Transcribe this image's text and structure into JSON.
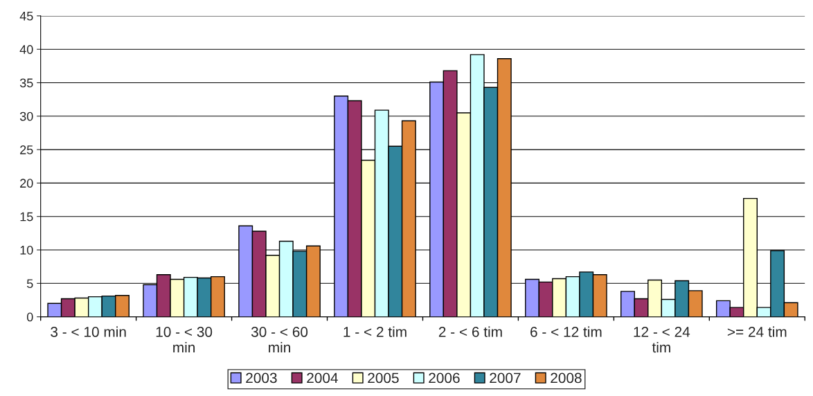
{
  "chart_data": {
    "type": "bar",
    "categories": [
      "3 - < 10 min",
      "10 - < 30 min",
      "30 - < 60 min",
      "1 - < 2 tim",
      "2 - < 6 tim",
      "6 - < 12 tim",
      "12 - < 24 tim",
      ">= 24 tim"
    ],
    "series": [
      {
        "name": "2003",
        "color": "#9999ff",
        "values": [
          2.0,
          4.8,
          13.6,
          33.0,
          35.1,
          5.6,
          3.8,
          2.4
        ]
      },
      {
        "name": "2004",
        "color": "#993366",
        "values": [
          2.7,
          6.3,
          12.8,
          32.3,
          36.8,
          5.2,
          2.7,
          1.4
        ]
      },
      {
        "name": "2005",
        "color": "#ffffcc",
        "values": [
          2.8,
          5.6,
          9.2,
          23.4,
          30.5,
          5.7,
          5.5,
          17.7
        ]
      },
      {
        "name": "2006",
        "color": "#ccffff",
        "values": [
          3.0,
          5.9,
          11.3,
          30.9,
          39.2,
          6.0,
          2.6,
          1.4
        ]
      },
      {
        "name": "2007",
        "color": "#31859c",
        "values": [
          3.1,
          5.8,
          9.8,
          25.5,
          34.3,
          6.7,
          5.4,
          9.9
        ]
      },
      {
        "name": "2008",
        "color": "#e0883c",
        "values": [
          3.2,
          6.0,
          10.6,
          29.3,
          38.6,
          6.3,
          3.9,
          2.1
        ]
      }
    ],
    "ylim": [
      0,
      45
    ],
    "yticks": [
      0,
      5,
      10,
      15,
      20,
      25,
      30,
      35,
      40,
      45
    ],
    "grid": "y",
    "legend": "bottom"
  }
}
